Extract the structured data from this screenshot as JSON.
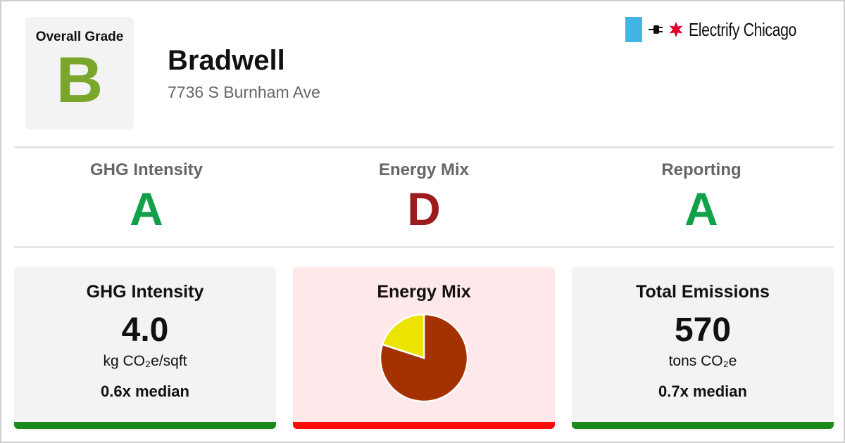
{
  "overall": {
    "label": "Overall Grade",
    "grade": "B",
    "grade_color": "#7aa62c"
  },
  "building": {
    "name": "Bradwell",
    "address": "7736 S Burnham Ave"
  },
  "brand": {
    "name": "Electrify Chicago",
    "flag_color": "#41b6e6",
    "star_color": "#e4002b",
    "icons": [
      "plug-icon",
      "star-icon"
    ]
  },
  "grades": [
    {
      "title": "GHG Intensity",
      "grade": "A",
      "color": "#13a04b"
    },
    {
      "title": "Energy Mix",
      "grade": "D",
      "color": "#9b1b1e"
    },
    {
      "title": "Reporting",
      "grade": "A",
      "color": "#13a04b"
    }
  ],
  "cards": {
    "ghg": {
      "title": "GHG Intensity",
      "value": "4.0",
      "unit": "kg CO₂e/sqft",
      "median": "0.6x median",
      "bar_color": "#1a8a1a",
      "bg": "#f3f3f3"
    },
    "energy": {
      "title": "Energy Mix",
      "bar_color": "#ff0a0a",
      "bg": "#ffe8ea"
    },
    "emissions": {
      "title": "Total Emissions",
      "value": "570",
      "unit": "tons CO₂e",
      "median": "0.7x median",
      "bar_color": "#1a8a1a",
      "bg": "#f3f3f3"
    }
  },
  "chart_data": {
    "type": "pie",
    "values": [
      80,
      20
    ],
    "colors": [
      "#a33200",
      "#ece300"
    ]
  }
}
